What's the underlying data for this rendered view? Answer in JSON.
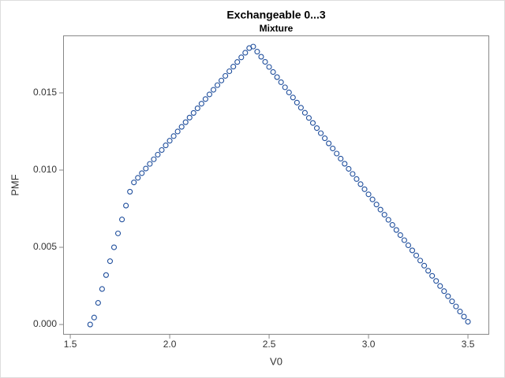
{
  "chart_data": {
    "type": "scatter",
    "title": "Exchangeable 0...3",
    "subtitle": "Mixture",
    "x_label": "V0",
    "y_label": "PMF",
    "color": "#1f4e9c",
    "x": [
      1.6,
      1.62,
      1.64,
      1.66,
      1.68,
      1.7,
      1.72,
      1.74,
      1.76,
      1.78,
      1.8,
      1.82,
      1.84,
      1.86,
      1.88,
      1.9,
      1.92,
      1.94,
      1.96,
      1.98,
      2.0,
      2.02,
      2.04,
      2.06,
      2.08,
      2.1,
      2.12,
      2.14,
      2.16,
      2.18,
      2.2,
      2.22,
      2.24,
      2.26,
      2.28,
      2.3,
      2.32,
      2.34,
      2.36,
      2.38,
      2.4,
      2.42,
      2.44,
      2.46,
      2.48,
      2.5,
      2.52,
      2.54,
      2.56,
      2.58,
      2.6,
      2.62,
      2.64,
      2.66,
      2.68,
      2.7,
      2.72,
      2.74,
      2.76,
      2.78,
      2.8,
      2.82,
      2.84,
      2.86,
      2.88,
      2.9,
      2.92,
      2.94,
      2.96,
      2.98,
      3.0,
      3.02,
      3.04,
      3.06,
      3.08,
      3.1,
      3.12,
      3.14,
      3.16,
      3.18,
      3.2,
      3.22,
      3.24,
      3.26,
      3.28,
      3.3,
      3.32,
      3.34,
      3.36,
      3.38,
      3.4,
      3.42,
      3.44,
      3.46,
      3.48,
      3.5
    ],
    "values": [
      0,
      0.00045,
      0.0014,
      0.0023,
      0.0032,
      0.0041,
      0.005,
      0.0059,
      0.0068,
      0.0077,
      0.0086,
      0.0092,
      0.0095,
      0.0098,
      0.0101,
      0.0104,
      0.0107,
      0.011,
      0.0113,
      0.0116,
      0.0119,
      0.0122,
      0.0125,
      0.0128,
      0.0131,
      0.0134,
      0.0137,
      0.014,
      0.0143,
      0.0146,
      0.0149,
      0.0152,
      0.0155,
      0.0158,
      0.0161,
      0.0164,
      0.0167,
      0.017,
      0.0173,
      0.0176,
      0.0179,
      0.018,
      0.01767,
      0.01734,
      0.01701,
      0.01668,
      0.01635,
      0.01602,
      0.01569,
      0.01536,
      0.01503,
      0.0147,
      0.01437,
      0.01404,
      0.01371,
      0.01338,
      0.01305,
      0.01272,
      0.01239,
      0.01206,
      0.01173,
      0.0114,
      0.01107,
      0.01074,
      0.01041,
      0.01008,
      0.00975,
      0.00942,
      0.00909,
      0.00876,
      0.00843,
      0.0081,
      0.00777,
      0.00744,
      0.00711,
      0.00678,
      0.00645,
      0.00612,
      0.00579,
      0.00546,
      0.00513,
      0.0048,
      0.00447,
      0.00414,
      0.00381,
      0.00348,
      0.00315,
      0.00282,
      0.00249,
      0.00216,
      0.00183,
      0.0015,
      0.00117,
      0.00084,
      0.00051,
      0.00018
    ],
    "xlim": [
      1.464,
      3.607
    ],
    "ylim": [
      -0.00066,
      0.01872
    ],
    "xticks": [
      1.5,
      {
        "value": 2,
        "label": "2.0"
      },
      2.5,
      {
        "value": 3,
        "label": "3.0"
      },
      3.5
    ],
    "yticks": [
      {
        "value": 0,
        "label": "0.000"
      },
      {
        "value": 0.005,
        "label": "0.005"
      },
      {
        "value": 0.01,
        "label": "0.010"
      },
      {
        "value": 0.015,
        "label": "0.015"
      }
    ]
  }
}
